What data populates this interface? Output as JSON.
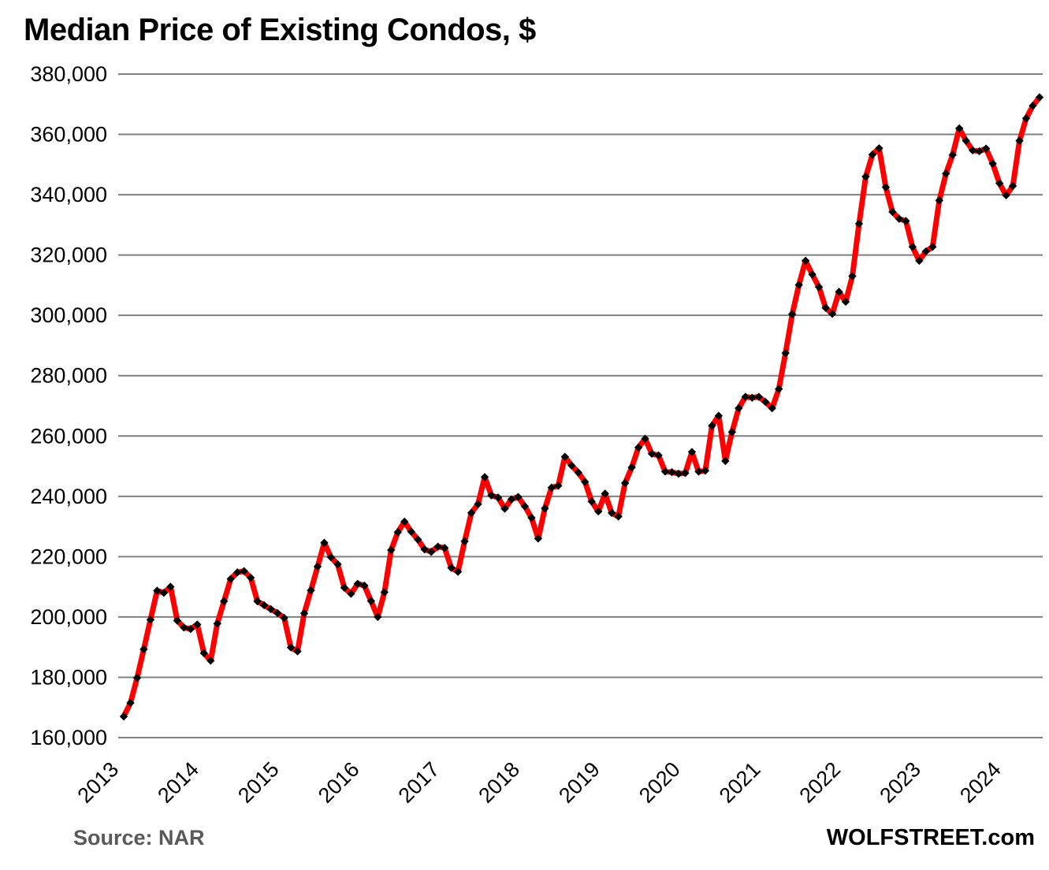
{
  "title": "Median Price of Existing Condos, $",
  "source_label": "Source: NAR",
  "branding": "WOLFSTREET.com",
  "colors": {
    "line": "#ff0000",
    "marker": "#000000",
    "grid": "#7f7f7f",
    "source_text": "#595959",
    "text": "#000000",
    "background": "#ffffff"
  },
  "chart_data": {
    "type": "line",
    "title": "Median Price of Existing Condos, $",
    "xlabel": "",
    "ylabel": "",
    "ylim": [
      160000,
      380000
    ],
    "y_ticks": [
      380000,
      360000,
      340000,
      320000,
      300000,
      280000,
      260000,
      240000,
      220000,
      200000,
      180000,
      160000
    ],
    "y_tick_labels": [
      "380,000",
      "360,000",
      "340,000",
      "320,000",
      "300,000",
      "280,000",
      "260,000",
      "240,000",
      "220,000",
      "200,000",
      "180,000",
      "160,000"
    ],
    "x_tick_labels": [
      "2013",
      "2014",
      "2015",
      "2016",
      "2017",
      "2018",
      "2019",
      "2020",
      "2021",
      "2022",
      "2023",
      "2024"
    ],
    "x_start_month": "2013-01",
    "x_end_month": "2024-06",
    "grid": "horizontal-only",
    "legend": "none",
    "series": [
      {
        "name": "Median price of existing condos, $, monthly",
        "color": "#ff0000",
        "marker": "diamond",
        "marker_color": "#000000",
        "monthly_values_by_year": {
          "2013": [
            167000,
            171500,
            179800,
            189300,
            199100,
            208700,
            208000,
            210000,
            198800,
            196500,
            196000,
            197500
          ],
          "2014": [
            188000,
            185500,
            197800,
            205200,
            212600,
            214800,
            215200,
            213000,
            205200,
            203900,
            202600,
            201300
          ],
          "2015": [
            199700,
            189900,
            188600,
            201200,
            208800,
            216700,
            224600,
            219800,
            217500,
            209700,
            207700,
            211000
          ],
          "2016": [
            210400,
            205300,
            200000,
            208200,
            222200,
            228100,
            231600,
            228300,
            225700,
            222400,
            221600,
            223300
          ],
          "2017": [
            222900,
            216300,
            215000,
            225100,
            234500,
            237400,
            246400,
            240300,
            239600,
            235900,
            239000,
            239800
          ],
          "2018": [
            236700,
            232900,
            226000,
            236000,
            242900,
            243500,
            253100,
            250200,
            247900,
            244800,
            238300,
            235000
          ],
          "2019": [
            240900,
            234500,
            233300,
            244400,
            249600,
            256200,
            259100,
            254100,
            253600,
            248200,
            248000,
            247500
          ],
          "2020": [
            247700,
            254700,
            248200,
            248500,
            263400,
            266700,
            251700,
            261300,
            269200,
            273000,
            272700,
            273000
          ],
          "2021": [
            271300,
            269200,
            275600,
            287500,
            300400,
            310100,
            318100,
            313600,
            309400,
            302500,
            300500,
            307800
          ],
          "2022": [
            304500,
            313000,
            330400,
            346000,
            353300,
            355400,
            342500,
            334300,
            332000,
            331300,
            322700,
            318100
          ],
          "2023": [
            321200,
            322700,
            338100,
            347000,
            353200,
            362000,
            357900,
            354700,
            354400,
            355300,
            350300,
            343800
          ],
          "2024": [
            339800,
            342900,
            357900,
            365300,
            369500,
            372300
          ]
        }
      }
    ]
  }
}
